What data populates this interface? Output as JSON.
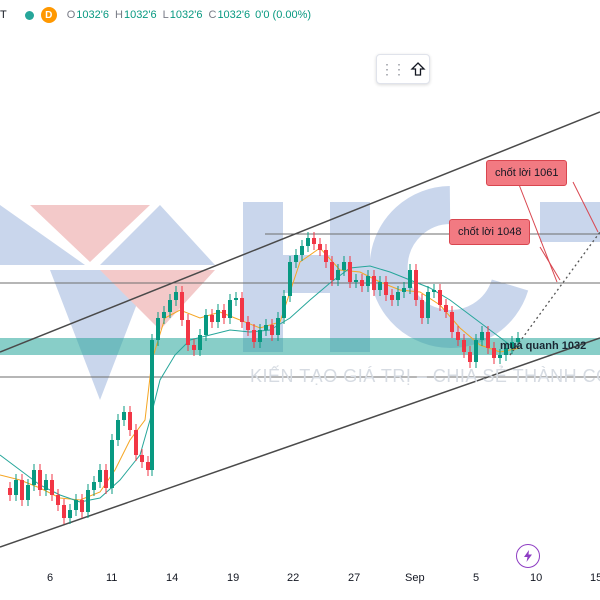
{
  "header": {
    "symbol_fragment": "T",
    "timeframe_badge": "D",
    "open_label": "O",
    "open_value": "1032'6",
    "high_label": "H",
    "high_value": "1032'6",
    "low_label": "L",
    "low_value": "1032'6",
    "close_label": "C",
    "close_value": "1032'6",
    "change": "0'0 (0.00%)"
  },
  "annotations": {
    "tp1": "chốt lời 1061",
    "tp2": "chốt lời 1048",
    "buy_zone": "mua quanh 1032"
  },
  "watermark_text": "KIẾN TẠO GIÁ TRỊ – CHIA SẺ THÀNH CÔ",
  "x_axis": [
    "6",
    "11",
    "14",
    "19",
    "22",
    "27",
    "Sep",
    "5",
    "10",
    "15"
  ],
  "colors": {
    "up": "#089981",
    "down": "#f23645",
    "zone": "#26a69a",
    "bubble": "#f27a82",
    "channel": "#4a4a4a"
  },
  "icons": {
    "toolbar_grip": "drag-grip-icon",
    "toolbar_arrow": "arrow-up-icon",
    "replay": "lightning-icon"
  }
}
